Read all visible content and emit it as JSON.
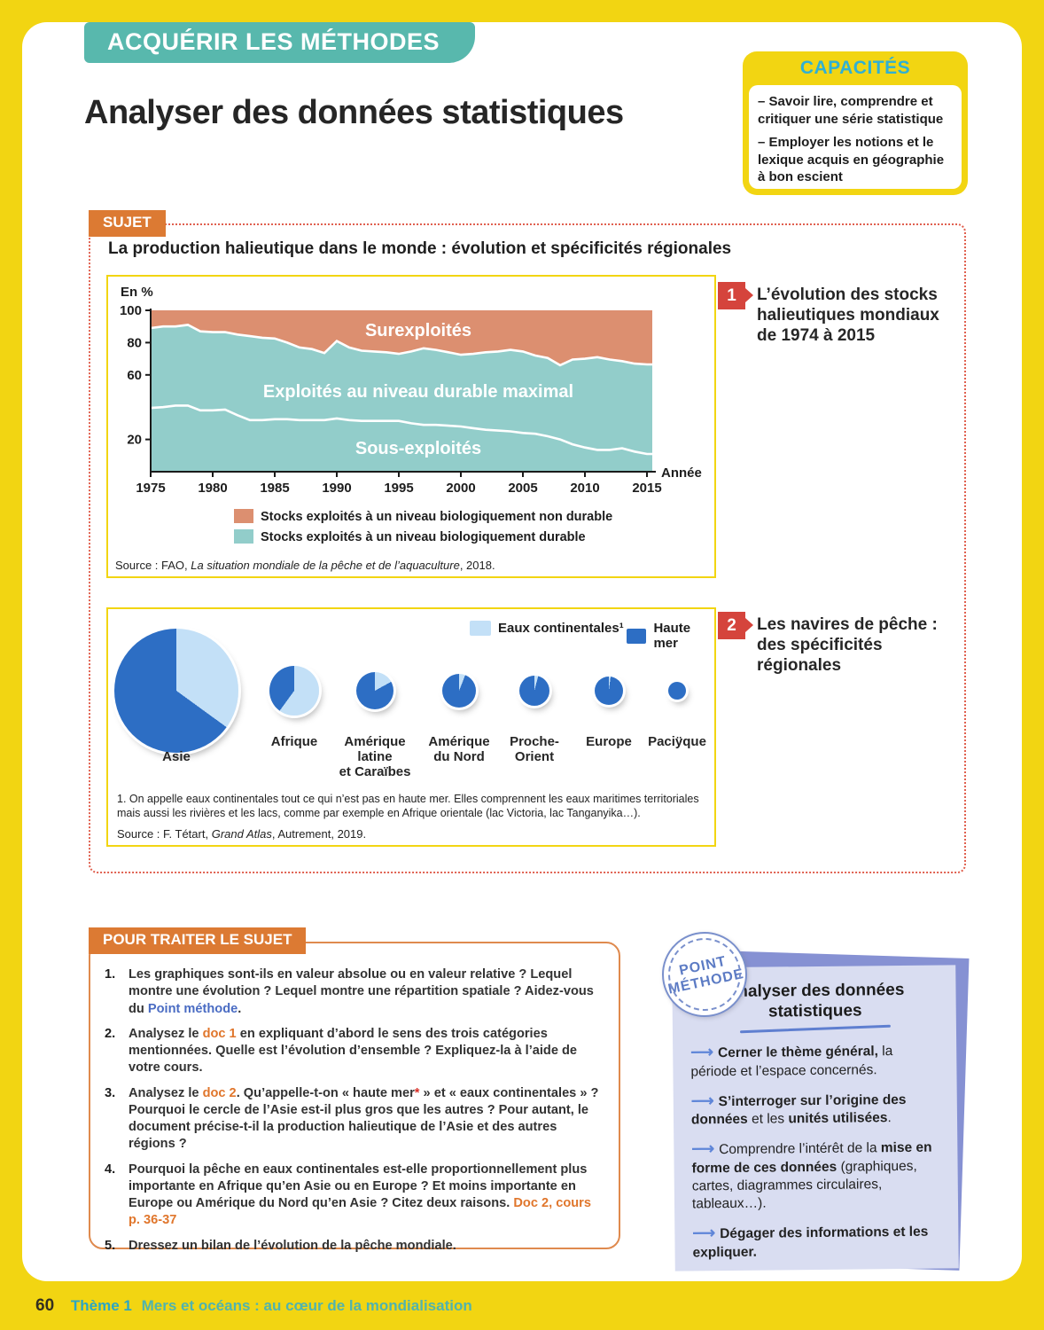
{
  "banner": "ACQUÉRIR LES MÉTHODES",
  "page_title": "Analyser des données statistiques",
  "capacites": {
    "title": "CAPACITÉS",
    "items": [
      "– Savoir lire, comprendre et critiquer une série statistique",
      "– Employer les notions et le lexique acquis en géographie à bon escient"
    ]
  },
  "sujet": {
    "badge": "SUJET",
    "title": "La production halieutique dans le monde : évolution et spécificités régionales"
  },
  "doc1": {
    "number": "1",
    "caption": "L’évolution des stocks halieutiques mondiaux de 1974 à 2015"
  },
  "doc2": {
    "number": "2",
    "caption": "Les navires de pêche : des spécificités régionales"
  },
  "pour_traiter": {
    "badge": "POUR TRAITER LE SUJET",
    "questions": [
      [
        {
          "t": "Les graphiques sont-ils en valeur absolue ou en valeur relative ? Lequel montre une évolution ? Lequel montre une répartition spatiale ? Aidez-vous du "
        },
        {
          "t": "Point méthode",
          "c": "blue"
        },
        {
          "t": "."
        }
      ],
      [
        {
          "t": "Analysez le "
        },
        {
          "t": "doc 1",
          "c": "orange"
        },
        {
          "t": " en expliquant d’abord le sens des trois catégories mentionnées. Quelle est l’évolution d’ensemble ? Expliquez-la à l’aide de votre cours."
        }
      ],
      [
        {
          "t": "Analysez le "
        },
        {
          "t": "doc 2",
          "c": "orange"
        },
        {
          "t": ". Qu’appelle-t-on « haute mer"
        },
        {
          "t": "*",
          "c": "red"
        },
        {
          "t": " » et « eaux continentales » ? Pourquoi le cercle de l’Asie est-il plus gros que les autres ? Pour autant, le document précise-t-il la production halieutique de l’Asie et des autres régions ?"
        }
      ],
      [
        {
          "t": "Pourquoi la pêche en eaux continentales est-elle proportionnellement plus importante en Afrique qu’en Asie ou en Europe ? Et moins importante en Europe ou Amérique du Nord qu’en Asie ? Citez deux raisons. "
        },
        {
          "t": "Doc 2, cours p. 36-37",
          "c": "orange"
        }
      ],
      [
        {
          "t": "Dressez un bilan de l’évolution de la pêche mondiale."
        }
      ]
    ]
  },
  "point_methode": {
    "stamp_line1": "POINT",
    "stamp_line2": "MÉTHODE",
    "title": "Analyser des données statistiques",
    "items": [
      [
        {
          "t": "Cerner le thème général,",
          "b": true
        },
        {
          "t": " la période et l’espace concernés."
        }
      ],
      [
        {
          "t": "S’interroger sur l’origine des données",
          "b": true
        },
        {
          "t": " et les "
        },
        {
          "t": "unités utilisées",
          "b": true
        },
        {
          "t": "."
        }
      ],
      [
        {
          "t": "Comprendre l’intérêt de la "
        },
        {
          "t": "mise en forme de ces données",
          "b": true
        },
        {
          "t": " (graphiques, cartes, diagrammes circulaires, tableaux…)."
        }
      ],
      [
        {
          "t": "Dégager des informations et les expliquer.",
          "b": true
        }
      ]
    ]
  },
  "footer": {
    "page": "60",
    "theme_label": "Thème 1",
    "theme_text": "Mers et océans : au cœur de la mondialisation"
  },
  "chart_data": [
    {
      "type": "area",
      "title": "L’évolution des stocks halieutiques mondiaux de 1974 à 2015",
      "ylabel": "En %",
      "xlabel": "Année",
      "ylim": [
        0,
        100
      ],
      "ytick_labels": [
        100,
        80,
        60,
        20
      ],
      "xticks": [
        1975,
        1980,
        1985,
        1990,
        1995,
        2000,
        2005,
        2010,
        2015
      ],
      "x": [
        1975,
        1976,
        1977,
        1978,
        1979,
        1980,
        1981,
        1982,
        1983,
        1984,
        1985,
        1986,
        1987,
        1988,
        1989,
        1990,
        1991,
        1992,
        1993,
        1994,
        1995,
        1996,
        1997,
        1998,
        1999,
        2000,
        2001,
        2002,
        2003,
        2004,
        2005,
        2006,
        2007,
        2008,
        2009,
        2010,
        2011,
        2012,
        2013,
        2014,
        2015
      ],
      "series": [
        {
          "name": "Limite supérieure des stocks exploités à un niveau biologiquement durable",
          "values": [
            89,
            90,
            90,
            91,
            87,
            86.5,
            86.5,
            85,
            84,
            83,
            82.5,
            80,
            77,
            76,
            73.5,
            81,
            77,
            75,
            74.5,
            74,
            73,
            74.5,
            76.5,
            75.5,
            74,
            72.5,
            73,
            74,
            74.5,
            75.5,
            74.5,
            72,
            70.5,
            66,
            69.5,
            70,
            71,
            69.5,
            68.5,
            67,
            66.5
          ]
        },
        {
          "name": "Limite supérieure des stocks sous-exploités",
          "values": [
            39.5,
            40,
            41,
            41,
            38,
            38,
            38.5,
            35,
            32,
            32,
            32.5,
            32.5,
            32,
            32,
            32,
            33,
            32,
            31.5,
            31.5,
            31.5,
            31.5,
            30,
            29,
            29,
            28.5,
            28,
            27,
            26,
            25.5,
            25,
            24,
            23.5,
            22,
            20,
            17,
            15,
            13.5,
            13.5,
            14.5,
            12.5,
            11
          ]
        }
      ],
      "area_labels": [
        "Surexploités",
        "Exploités au niveau durable maximal",
        "Sous-exploités"
      ],
      "colors": {
        "surexploites": "#dc8f70",
        "durable": "#92cdca"
      },
      "legend": [
        {
          "label": "Stocks exploités à un niveau biologiquement non durable",
          "color": "#dc8f70"
        },
        {
          "label": "Stocks exploités à un niveau biologiquement durable",
          "color": "#92cdca"
        }
      ],
      "source_prefix": "Source : FAO, ",
      "source_italic": "La situation mondiale de la pêche et de l’aquaculture",
      "source_suffix": ", 2018."
    },
    {
      "type": "pie",
      "title": "Les navires de pêche : des spécificités régionales",
      "legend": [
        {
          "label": "Eaux continentales¹",
          "color": "#c3e0f7"
        },
        {
          "label": "Haute mer",
          "color": "#2d6ec4"
        }
      ],
      "pies": [
        {
          "label_lines": [
            "Asie"
          ],
          "continental_pct": 35,
          "haute_mer_pct": 65,
          "diameter": 140
        },
        {
          "label_lines": [
            "Afrique"
          ],
          "continental_pct": 60,
          "haute_mer_pct": 40,
          "diameter": 56
        },
        {
          "label_lines": [
            "Amérique",
            "latine",
            "et Caraïbes"
          ],
          "continental_pct": 17,
          "haute_mer_pct": 83,
          "diameter": 42
        },
        {
          "label_lines": [
            "Amérique",
            "du Nord"
          ],
          "continental_pct": 6,
          "haute_mer_pct": 94,
          "diameter": 38
        },
        {
          "label_lines": [
            "Proche-",
            "Orient"
          ],
          "continental_pct": 4,
          "haute_mer_pct": 96,
          "diameter": 34
        },
        {
          "label_lines": [
            "Europe"
          ],
          "continental_pct": 2,
          "haute_mer_pct": 98,
          "diameter": 32
        },
        {
          "label_lines": [
            "Paciÿque"
          ],
          "continental_pct": 0,
          "haute_mer_pct": 100,
          "diameter": 20
        }
      ],
      "footnote": "1. On appelle eaux continentales tout ce qui n’est pas en haute mer. Elles comprennent les eaux maritimes territoriales mais aussi les rivières et les lacs, comme par exemple en Afrique orientale (lac Victoria, lac Tanganyika…).",
      "source_prefix": "Source : F. Tétart, ",
      "source_italic": "Grand Atlas",
      "source_suffix": ", Autrement, 2019."
    }
  ]
}
